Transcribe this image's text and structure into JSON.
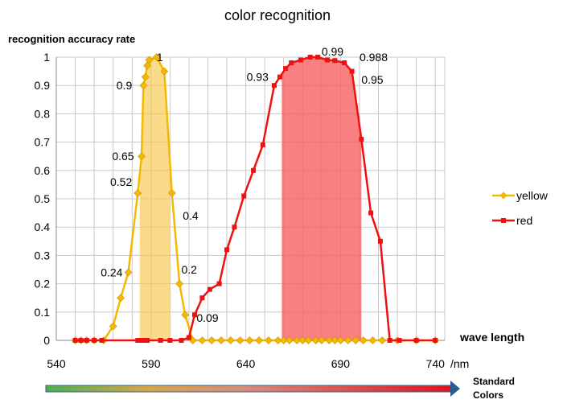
{
  "chart_data": {
    "type": "line",
    "title": "color recognition",
    "ylabel": "recognition accuracy rate",
    "xlabel": "wave length",
    "x_unit": "/nm",
    "xlim": [
      540,
      745
    ],
    "ylim": [
      0,
      1
    ],
    "x_ticks": [
      540,
      590,
      640,
      690,
      740
    ],
    "y_ticks": [
      0,
      0.1,
      0.2,
      0.3,
      0.4,
      0.5,
      0.6,
      0.7,
      0.8,
      0.9,
      1
    ],
    "y_tick_labels": [
      "0",
      "0.1",
      "0.2",
      "0.3",
      "0.4",
      "0.5",
      "0.6",
      "0.7",
      "0.8",
      "0.9",
      "1"
    ],
    "x_tick_labels": [
      "540",
      "590",
      "640",
      "690",
      "740"
    ],
    "grid": true,
    "legend_position": "right",
    "series": [
      {
        "name": "yellow",
        "color": "#F5B800",
        "marker": "diamond",
        "points": [
          [
            550,
            0
          ],
          [
            553,
            0
          ],
          [
            556,
            0
          ],
          [
            560,
            0
          ],
          [
            565,
            0
          ],
          [
            570,
            0.05
          ],
          [
            574,
            0.15
          ],
          [
            578,
            0.24
          ],
          [
            583,
            0.52
          ],
          [
            585,
            0.65
          ],
          [
            586,
            0.9
          ],
          [
            587,
            0.93
          ],
          [
            588,
            0.97
          ],
          [
            589,
            0.99
          ],
          [
            593,
            1
          ],
          [
            597,
            0.95
          ],
          [
            601,
            0.52
          ],
          [
            605,
            0.2
          ],
          [
            608,
            0.09
          ],
          [
            612,
            0
          ],
          [
            617,
            0
          ],
          [
            622,
            0
          ],
          [
            627,
            0
          ],
          [
            632,
            0
          ],
          [
            637,
            0
          ],
          [
            642,
            0
          ],
          [
            647,
            0
          ],
          [
            652,
            0
          ],
          [
            657,
            0
          ],
          [
            660,
            0
          ],
          [
            663,
            0
          ],
          [
            667,
            0
          ],
          [
            670,
            0
          ],
          [
            673,
            0
          ],
          [
            677,
            0
          ],
          [
            680,
            0
          ],
          [
            684,
            0
          ],
          [
            687,
            0
          ],
          [
            690,
            0
          ],
          [
            694,
            0
          ],
          [
            698,
            0
          ],
          [
            702,
            0
          ],
          [
            707,
            0
          ],
          [
            712,
            0
          ],
          [
            720,
            0
          ],
          [
            730,
            0
          ],
          [
            740,
            0
          ]
        ]
      },
      {
        "name": "red",
        "color": "#EE1111",
        "marker": "square",
        "points": [
          [
            550,
            0
          ],
          [
            553,
            0
          ],
          [
            556,
            0
          ],
          [
            560,
            0
          ],
          [
            564,
            0
          ],
          [
            583,
            0
          ],
          [
            584,
            0
          ],
          [
            585,
            0
          ],
          [
            586,
            0
          ],
          [
            587,
            0
          ],
          [
            588,
            0
          ],
          [
            595,
            0
          ],
          [
            600,
            0
          ],
          [
            606,
            0
          ],
          [
            610,
            0.01
          ],
          [
            613,
            0.09
          ],
          [
            617,
            0.15
          ],
          [
            621,
            0.18
          ],
          [
            626,
            0.2
          ],
          [
            630,
            0.32
          ],
          [
            634,
            0.4
          ],
          [
            639,
            0.51
          ],
          [
            644,
            0.6
          ],
          [
            649,
            0.69
          ],
          [
            655,
            0.9
          ],
          [
            658,
            0.93
          ],
          [
            661,
            0.96
          ],
          [
            664,
            0.98
          ],
          [
            669,
            0.99
          ],
          [
            674,
            1
          ],
          [
            678,
            1
          ],
          [
            683,
            0.99
          ],
          [
            687,
            0.988
          ],
          [
            692,
            0.98
          ],
          [
            696,
            0.95
          ],
          [
            701,
            0.71
          ],
          [
            706,
            0.45
          ],
          [
            711,
            0.35
          ],
          [
            716,
            0
          ],
          [
            721,
            0
          ],
          [
            730,
            0
          ],
          [
            740,
            0
          ]
        ]
      }
    ],
    "shaded_regions": [
      {
        "series": "yellow",
        "x_start": 584,
        "x_end": 600,
        "color": "#F8C74A",
        "opacity": 0.65
      },
      {
        "series": "red",
        "x_start": 659,
        "x_end": 701,
        "color": "#F76060",
        "opacity": 0.8
      }
    ],
    "annotations": [
      {
        "text": "1",
        "x": 593,
        "y": 1
      },
      {
        "text": "0.9",
        "x": 580,
        "y": 0.9
      },
      {
        "text": "0.65",
        "x": 581,
        "y": 0.65
      },
      {
        "text": "0.52",
        "x": 580,
        "y": 0.56
      },
      {
        "text": "0.24",
        "x": 575,
        "y": 0.24
      },
      {
        "text": "0.2",
        "x": 606,
        "y": 0.25
      },
      {
        "text": "0.09",
        "x": 614,
        "y": 0.08
      },
      {
        "text": "0.4",
        "x": 615,
        "y": 0.44
      },
      {
        "text": "0.93",
        "x": 652,
        "y": 0.93
      },
      {
        "text": "0.99",
        "x": 680,
        "y": 1.02
      },
      {
        "text": "0.988",
        "x": 700,
        "y": 1.0
      },
      {
        "text": "0.95",
        "x": 701,
        "y": 0.92
      }
    ],
    "bottom_label": "Standard Colors",
    "bottom_label_lines": [
      "Standard",
      "Colors"
    ]
  }
}
